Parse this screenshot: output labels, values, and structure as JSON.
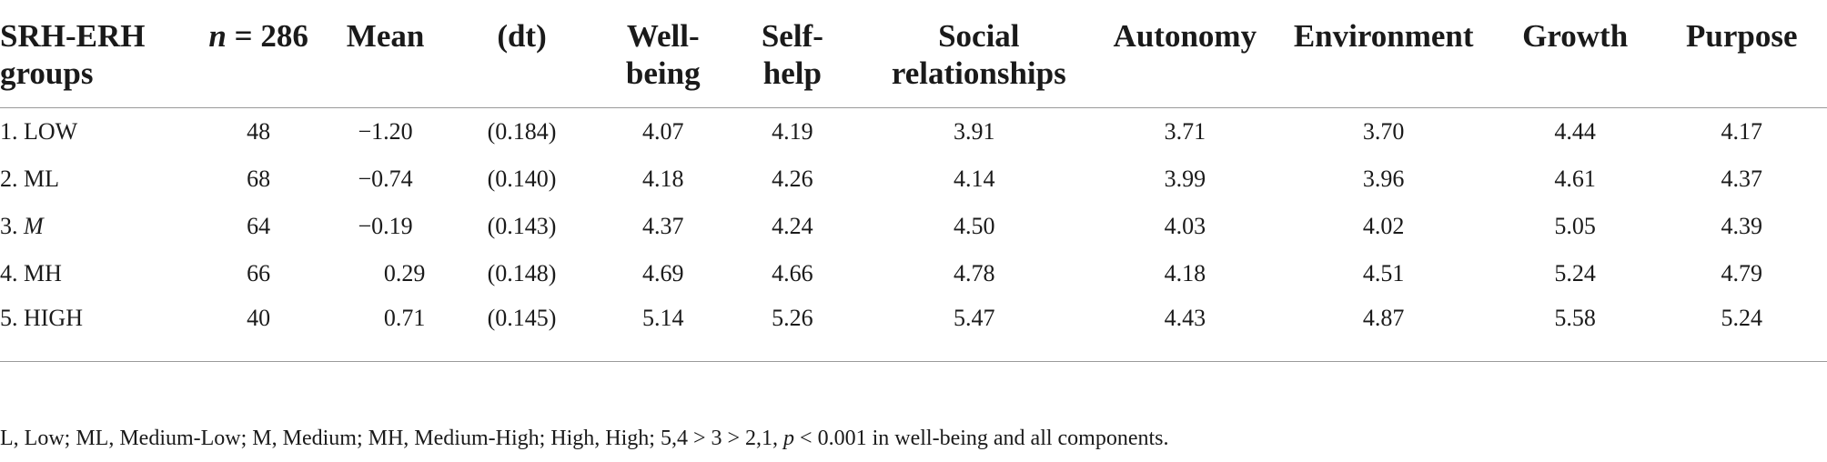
{
  "table": {
    "headers": {
      "group": "SRH-ERH groups",
      "n_italic": "n",
      "n_rest": " = 286",
      "mean": "Mean",
      "dt": "(dt)",
      "wellbeing": "Well-being",
      "selfhelp": "Self-help",
      "social": "Social relationships",
      "autonomy": "Autonomy",
      "environment": "Environment",
      "growth": "Growth",
      "purpose": "Purpose"
    },
    "rows": [
      {
        "group_prefix": "1. ",
        "group_label": "LOW",
        "n": "48",
        "mean": "−1.20",
        "dt": "(0.184)",
        "wellbeing": "4.07",
        "selfhelp": "4.19",
        "social": "3.91",
        "autonomy": "3.71",
        "environment": "3.70",
        "growth": "4.44",
        "purpose": "4.17"
      },
      {
        "group_prefix": "2. ",
        "group_label": "ML",
        "n": "68",
        "mean": "−0.74",
        "dt": "(0.140)",
        "wellbeing": "4.18",
        "selfhelp": "4.26",
        "social": "4.14",
        "autonomy": "3.99",
        "environment": "3.96",
        "growth": "4.61",
        "purpose": "4.37"
      },
      {
        "group_prefix": "3. ",
        "group_label": "M",
        "n": "64",
        "mean": "−0.19",
        "dt": "(0.143)",
        "wellbeing": "4.37",
        "selfhelp": "4.24",
        "social": "4.50",
        "autonomy": "4.03",
        "environment": "4.02",
        "growth": "5.05",
        "purpose": "4.39"
      },
      {
        "group_prefix": "4. ",
        "group_label": "MH",
        "n": "66",
        "mean": "0.29",
        "dt": "(0.148)",
        "wellbeing": "4.69",
        "selfhelp": "4.66",
        "social": "4.78",
        "autonomy": "4.18",
        "environment": "4.51",
        "growth": "5.24",
        "purpose": "4.79"
      },
      {
        "group_prefix": "5. ",
        "group_label": "HIGH",
        "n": "40",
        "mean": "0.71",
        "dt": "(0.145)",
        "wellbeing": "5.14",
        "selfhelp": "5.26",
        "social": "5.47",
        "autonomy": "4.43",
        "environment": "4.87",
        "growth": "5.58",
        "purpose": "5.24"
      }
    ]
  },
  "footnote": {
    "text_before": "L, Low; ML, Medium-Low; M, Medium; MH, Medium-High; High, High; 5,4 > 3 > 2,1, ",
    "p_italic": "p",
    "text_after": " < 0.001 in well-being and all components."
  }
}
